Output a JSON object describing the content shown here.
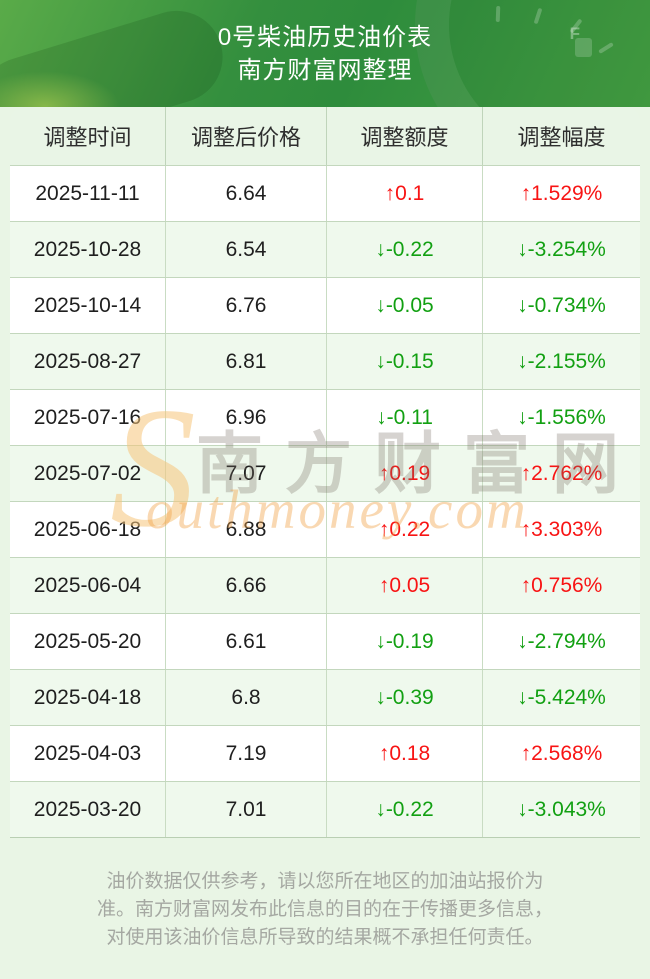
{
  "header": {
    "title_line1": "0号柴油历史油价表",
    "title_line2": "南方财富网整理",
    "gauge_label": "F"
  },
  "table": {
    "columns": [
      "调整时间",
      "调整后价格",
      "调整额度",
      "调整幅度"
    ],
    "rows": [
      {
        "date": "2025-11-11",
        "price": "6.64",
        "amount": "↑0.1",
        "rate": "↑1.529%",
        "direction": "up"
      },
      {
        "date": "2025-10-28",
        "price": "6.54",
        "amount": "↓-0.22",
        "rate": "↓-3.254%",
        "direction": "down"
      },
      {
        "date": "2025-10-14",
        "price": "6.76",
        "amount": "↓-0.05",
        "rate": "↓-0.734%",
        "direction": "down"
      },
      {
        "date": "2025-08-27",
        "price": "6.81",
        "amount": "↓-0.15",
        "rate": "↓-2.155%",
        "direction": "down"
      },
      {
        "date": "2025-07-16",
        "price": "6.96",
        "amount": "↓-0.11",
        "rate": "↓-1.556%",
        "direction": "down"
      },
      {
        "date": "2025-07-02",
        "price": "7.07",
        "amount": "↑0.19",
        "rate": "↑2.762%",
        "direction": "up"
      },
      {
        "date": "2025-06-18",
        "price": "6.88",
        "amount": "↑0.22",
        "rate": "↑3.303%",
        "direction": "up"
      },
      {
        "date": "2025-06-04",
        "price": "6.66",
        "amount": "↑0.05",
        "rate": "↑0.756%",
        "direction": "up"
      },
      {
        "date": "2025-05-20",
        "price": "6.61",
        "amount": "↓-0.19",
        "rate": "↓-2.794%",
        "direction": "down"
      },
      {
        "date": "2025-04-18",
        "price": "6.8",
        "amount": "↓-0.39",
        "rate": "↓-5.424%",
        "direction": "down"
      },
      {
        "date": "2025-04-03",
        "price": "7.19",
        "amount": "↑0.18",
        "rate": "↑2.568%",
        "direction": "up"
      },
      {
        "date": "2025-03-20",
        "price": "7.01",
        "amount": "↓-0.22",
        "rate": "↓-3.043%",
        "direction": "down"
      }
    ]
  },
  "watermark": {
    "initial": "S",
    "cjk": "南方财富网",
    "latin": "outhmoney.com"
  },
  "footer": {
    "lines": [
      "油价数据仅供参考，请以您所在地区的加油站报价为",
      "准。南方财富网发布此信息的目的在于传播更多信息，",
      "对使用该油价信息所导致的结果概不承担任何责任。"
    ]
  },
  "colors": {
    "up_red": "#f81414",
    "down_green": "#12a012",
    "header_green_dark": "#2e8c3c",
    "header_green_light": "#5aab49",
    "page_background": "#e9f5e5",
    "alt_row_background": "#eff9ed",
    "watermark_orange": "#f6c47a"
  },
  "chart_data": {
    "type": "table",
    "title": "0号柴油历史油价表",
    "subtitle": "南方财富网整理",
    "columns": [
      "调整时间",
      "调整后价格",
      "调整额度",
      "调整幅度"
    ],
    "rows": [
      [
        "2025-11-11",
        6.64,
        "+0.1",
        "+1.529%"
      ],
      [
        "2025-10-28",
        6.54,
        "-0.22",
        "-3.254%"
      ],
      [
        "2025-10-14",
        6.76,
        "-0.05",
        "-0.734%"
      ],
      [
        "2025-08-27",
        6.81,
        "-0.15",
        "-2.155%"
      ],
      [
        "2025-07-16",
        6.96,
        "-0.11",
        "-1.556%"
      ],
      [
        "2025-07-02",
        7.07,
        "+0.19",
        "+2.762%"
      ],
      [
        "2025-06-18",
        6.88,
        "+0.22",
        "+3.303%"
      ],
      [
        "2025-06-04",
        6.66,
        "+0.05",
        "+0.756%"
      ],
      [
        "2025-05-20",
        6.61,
        "-0.19",
        "-2.794%"
      ],
      [
        "2025-04-18",
        6.8,
        "-0.39",
        "-5.424%"
      ],
      [
        "2025-04-03",
        7.19,
        "+0.18",
        "+2.568%"
      ],
      [
        "2025-03-20",
        7.01,
        "-0.22",
        "-3.043%"
      ]
    ]
  }
}
